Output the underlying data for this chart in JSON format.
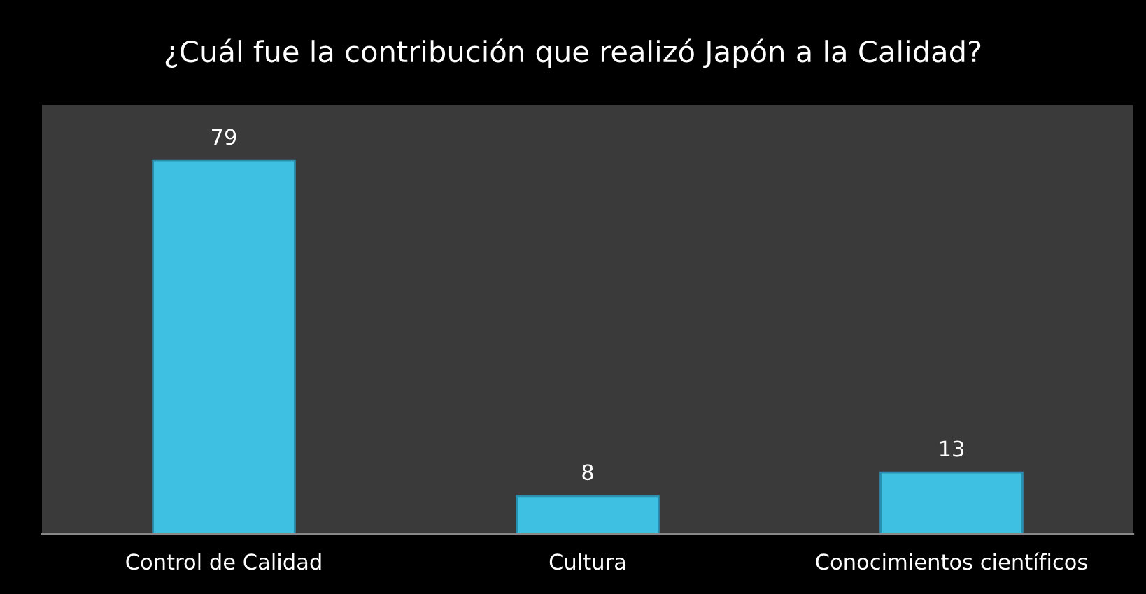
{
  "chart_data": {
    "type": "bar",
    "title": "¿Cuál fue la contribución que realizó Japón a la Calidad?",
    "categories": [
      "Control de Calidad",
      "Cultura",
      "Conocimientos científicos"
    ],
    "values": [
      79,
      8,
      13
    ],
    "color": "#3ec0e2",
    "data_labels": true,
    "tick_labels": "x",
    "grid": false,
    "legend": false
  }
}
